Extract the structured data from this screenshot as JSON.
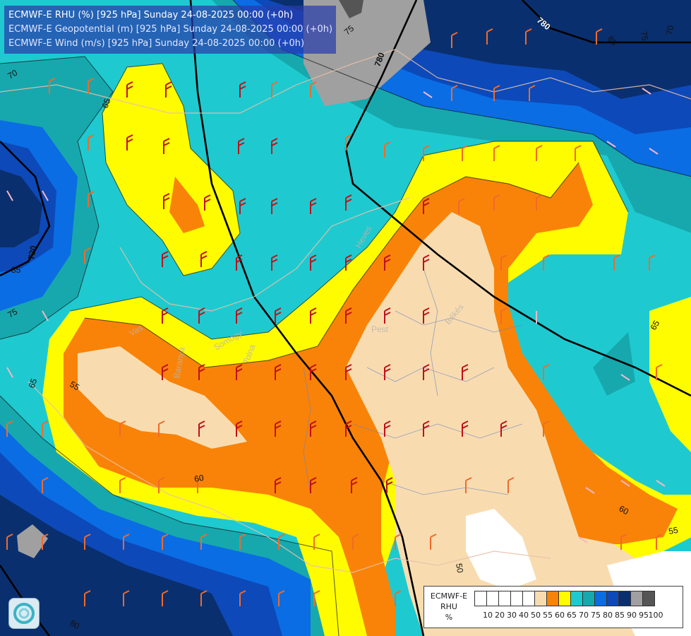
{
  "header": {
    "line_rhu": "ECMWF-E RHU (%) [925 hPa] Sunday 24-08-2025 00:00 (+0h)",
    "line_geopotential": "ECMWF-E Geopotential (m) [925 hPa] Sunday 24-08-2025 00:00 (+0h)",
    "line_wind": "ECMWF-E Wind (m/s) [925 hPa] Sunday 24-08-2025 00:00 (+0h)"
  },
  "legend": {
    "title_line1": "ECMWF-E",
    "title_line2": "RHU",
    "title_line3": "%",
    "levels": [
      "10",
      "20",
      "30",
      "40",
      "50",
      "55",
      "60",
      "65",
      "70",
      "75",
      "80",
      "85",
      "90",
      "95",
      "100"
    ],
    "colors": [
      "#ffffff",
      "#ffffff",
      "#ffffff",
      "#ffffff",
      "#ffffff",
      "#f8dcb0",
      "#f98308",
      "#fffc00",
      "#1ecad0",
      "#17a8ad",
      "#0a6de4",
      "#0d49b8",
      "#0a2f6e",
      "#a0a0a0",
      "#555555"
    ]
  },
  "map": {
    "contour_labels": [
      {
        "text": "75",
        "name": "contour-label-75-north"
      },
      {
        "text": "780",
        "name": "contour-label-780-north"
      },
      {
        "text": "780",
        "name": "contour-label-780-northeast"
      },
      {
        "text": "80",
        "name": "contour-label-80-northeast"
      },
      {
        "text": "75",
        "name": "contour-label-75-northeast"
      },
      {
        "text": "70",
        "name": "contour-label-70-east"
      },
      {
        "text": "70",
        "name": "contour-label-70-west"
      },
      {
        "text": "65",
        "name": "contour-label-65-northwest"
      },
      {
        "text": "720",
        "name": "contour-label-720-west"
      },
      {
        "text": "85",
        "name": "contour-label-85-west"
      },
      {
        "text": "75",
        "name": "contour-label-75-west"
      },
      {
        "text": "65",
        "name": "contour-label-65-east"
      },
      {
        "text": "55",
        "name": "contour-label-55-west"
      },
      {
        "text": "65",
        "name": "contour-label-65-southwest"
      },
      {
        "text": "60",
        "name": "contour-label-60-south"
      },
      {
        "text": "60",
        "name": "contour-label-60-southeast"
      },
      {
        "text": "55",
        "name": "contour-label-55-southeast"
      },
      {
        "text": "50",
        "name": "contour-label-50-south"
      },
      {
        "text": "80",
        "name": "contour-label-80-southwest"
      }
    ],
    "place_labels": [
      {
        "text": "Heves",
        "name": "place-label-heves"
      },
      {
        "text": "Pest",
        "name": "place-label-pest"
      },
      {
        "text": "Békés",
        "name": "place-label-bekes"
      },
      {
        "text": "Vas",
        "name": "place-label-vas"
      },
      {
        "text": "Somogy",
        "name": "place-label-somogy"
      },
      {
        "text": "Baranya",
        "name": "place-label-baranya"
      },
      {
        "text": "Tolna",
        "name": "place-label-tolna"
      }
    ]
  }
}
